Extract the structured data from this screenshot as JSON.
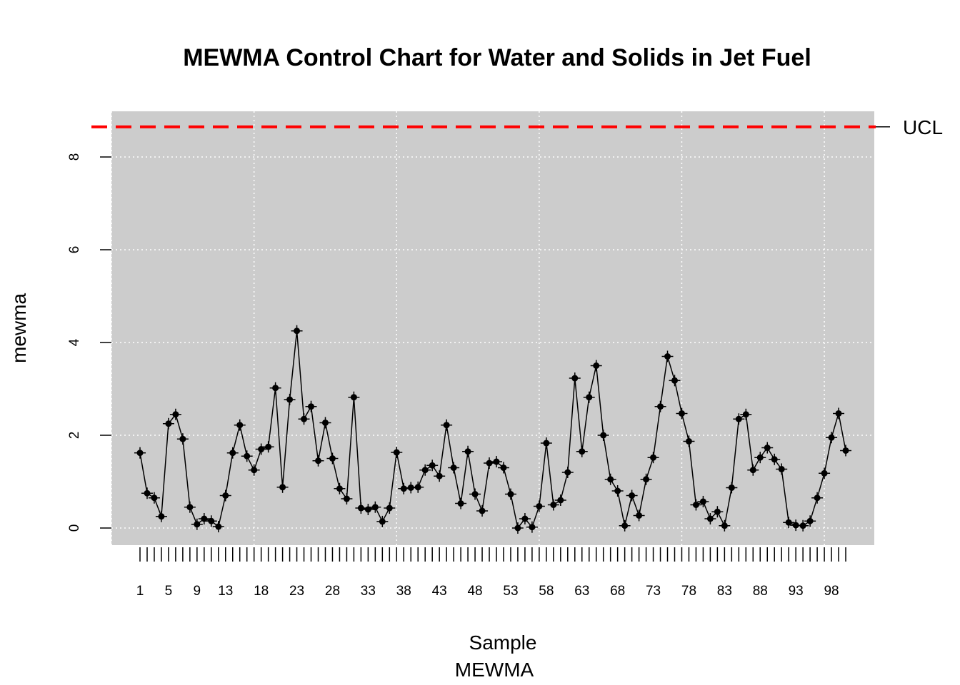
{
  "chart_data": {
    "type": "line",
    "title": "MEWMA Control Chart for Water and Solids in Jet Fuel",
    "xlabel": "Sample",
    "xlabel_sub": "MEWMA",
    "ylabel": "mewma",
    "ylim": [
      0,
      8.6
    ],
    "yticks": [
      0,
      2,
      4,
      6,
      8
    ],
    "xtick_labels": [
      1,
      5,
      9,
      13,
      18,
      23,
      28,
      33,
      38,
      43,
      48,
      53,
      58,
      63,
      68,
      73,
      78,
      83,
      88,
      93,
      98
    ],
    "n_samples": 100,
    "grid": true,
    "background": "#cccccc",
    "ucl": {
      "value": 8.65,
      "label": "UCL",
      "color": "#ff0000"
    },
    "series": [
      {
        "values": [
          1.62,
          0.75,
          0.65,
          0.25,
          2.25,
          2.45,
          1.92,
          0.45,
          0.08,
          0.2,
          0.15,
          0.03,
          0.7,
          1.62,
          2.22,
          1.55,
          1.25,
          1.7,
          1.75,
          3.02,
          0.88,
          2.77,
          4.25,
          2.35,
          2.62,
          1.45,
          2.27,
          1.5,
          0.85,
          0.63,
          2.82,
          0.43,
          0.4,
          0.45,
          0.14,
          0.43,
          1.63,
          0.85,
          0.87,
          0.88,
          1.25,
          1.35,
          1.12,
          2.22,
          1.3,
          0.53,
          1.65,
          0.73,
          0.37,
          1.4,
          1.43,
          1.3,
          0.73,
          0.0,
          0.2,
          0.02,
          0.47,
          1.83,
          0.5,
          0.6,
          1.2,
          3.23,
          1.65,
          2.82,
          3.5,
          2.0,
          1.05,
          0.8,
          0.05,
          0.7,
          0.27,
          1.05,
          1.52,
          2.62,
          3.7,
          3.18,
          2.47,
          1.87,
          0.5,
          0.57,
          0.2,
          0.35,
          0.05,
          0.87,
          2.35,
          2.45,
          1.25,
          1.52,
          1.73,
          1.48,
          1.27,
          0.12,
          0.06,
          0.05,
          0.15,
          0.65,
          1.18,
          1.95,
          2.47,
          1.67
        ],
        "color": "#000000"
      }
    ]
  }
}
